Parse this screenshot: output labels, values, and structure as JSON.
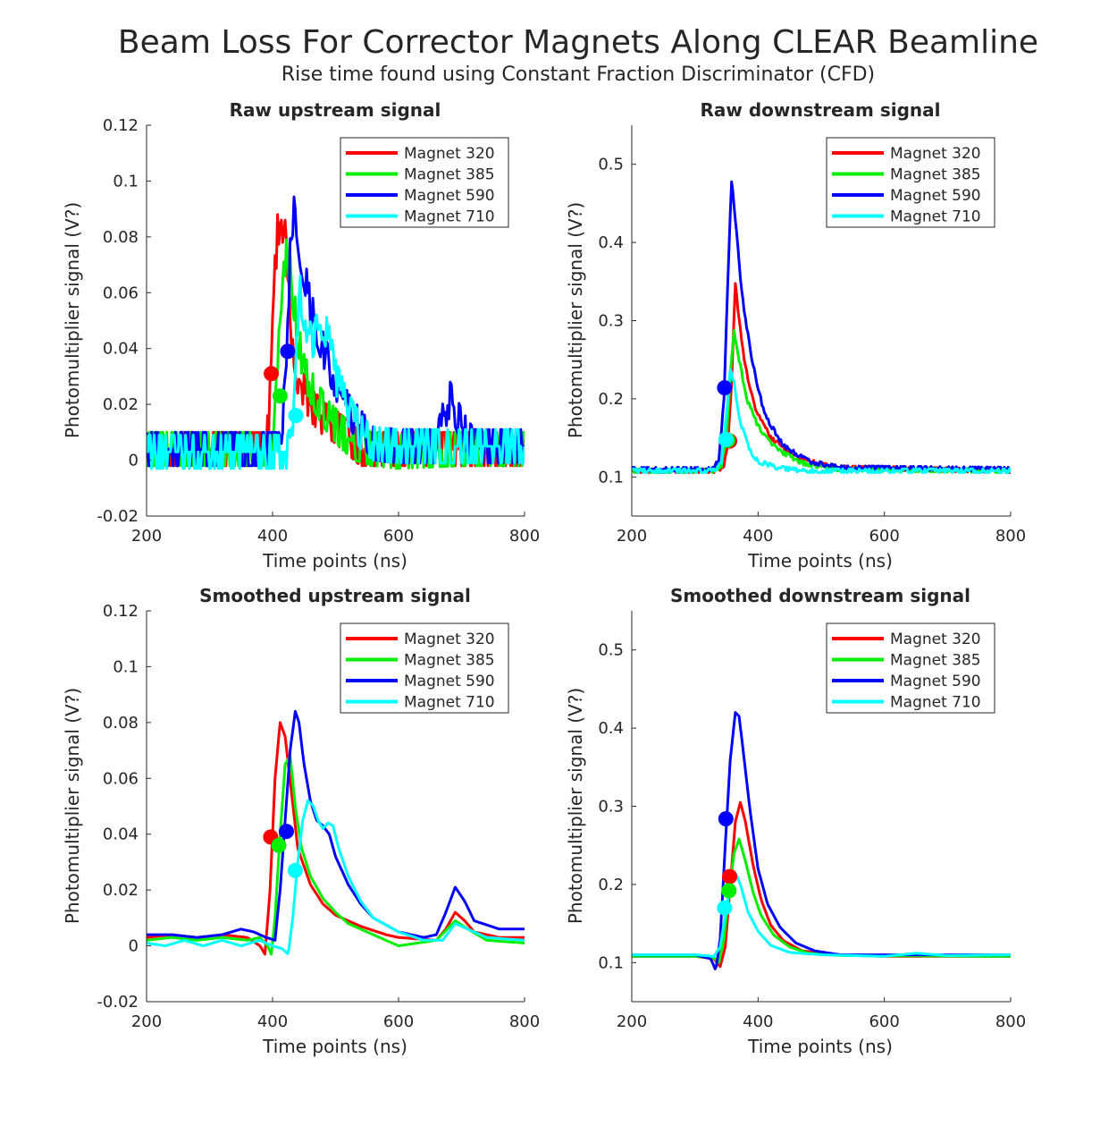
{
  "figure": {
    "title": "Beam Loss For Corrector Magnets Along CLEAR Beamline",
    "subtitle": "Rise time found using Constant Fraction Discriminator (CFD)"
  },
  "colors": {
    "Magnet 320": "#ff0000",
    "Magnet 385": "#00ee00",
    "Magnet 590": "#0000ff",
    "Magnet 710": "#00ffff"
  },
  "chart_data": [
    {
      "type": "line",
      "title": "Raw upstream signal",
      "xlabel": "Time points (ns)",
      "ylabel": "Photomultiplier signal (V?)",
      "xlim": [
        200,
        800
      ],
      "ylim": [
        -0.02,
        0.12
      ],
      "xticks": [
        "200",
        "400",
        "600",
        "800"
      ],
      "yticks": [
        "-0.02",
        "0",
        "0.02",
        "0.04",
        "0.06",
        "0.08",
        "0.1",
        "0.12"
      ],
      "grid": false,
      "legend_position": "top-right",
      "noise": 0.006,
      "series": [
        {
          "name": "Magnet 320",
          "color": "#ff0000",
          "x": [
            200,
            380,
            392,
            398,
            402,
            408,
            414,
            420,
            428,
            440,
            460,
            480,
            500,
            520,
            540,
            600,
            700,
            800
          ],
          "y": [
            0.004,
            0.004,
            0.01,
            0.03,
            0.06,
            0.082,
            0.086,
            0.08,
            0.05,
            0.03,
            0.02,
            0.015,
            0.012,
            0.008,
            0.004,
            0.004,
            0.004,
            0.004
          ]
        },
        {
          "name": "Magnet 385",
          "color": "#00ee00",
          "x": [
            200,
            398,
            404,
            410,
            416,
            424,
            432,
            440,
            450,
            470,
            490,
            510,
            530,
            560,
            600,
            700,
            800
          ],
          "y": [
            0.004,
            0.004,
            0.015,
            0.04,
            0.07,
            0.074,
            0.06,
            0.045,
            0.032,
            0.022,
            0.015,
            0.01,
            0.006,
            0.004,
            0.003,
            0.004,
            0.004
          ]
        },
        {
          "name": "Magnet 590",
          "color": "#0000ff",
          "x": [
            200,
            410,
            418,
            424,
            430,
            436,
            444,
            452,
            460,
            480,
            500,
            520,
            540,
            560,
            600,
            660,
            672,
            682,
            690,
            700,
            720,
            800
          ],
          "y": [
            0.004,
            0.004,
            0.02,
            0.05,
            0.085,
            0.09,
            0.075,
            0.065,
            0.055,
            0.04,
            0.028,
            0.018,
            0.012,
            0.006,
            0.005,
            0.005,
            0.016,
            0.022,
            0.018,
            0.012,
            0.005,
            0.005
          ]
        },
        {
          "name": "Magnet 710",
          "color": "#00ffff",
          "x": [
            200,
            425,
            432,
            438,
            444,
            452,
            462,
            470,
            480,
            490,
            500,
            520,
            540,
            560,
            600,
            800
          ],
          "y": [
            0.003,
            0.003,
            0.015,
            0.038,
            0.06,
            0.05,
            0.042,
            0.046,
            0.05,
            0.042,
            0.03,
            0.018,
            0.01,
            0.006,
            0.005,
            0.005
          ]
        }
      ],
      "markers": [
        {
          "series": "Magnet 320",
          "x": 398,
          "y": 0.031
        },
        {
          "series": "Magnet 385",
          "x": 412,
          "y": 0.023
        },
        {
          "series": "Magnet 590",
          "x": 424,
          "y": 0.039
        },
        {
          "series": "Magnet 710",
          "x": 437,
          "y": 0.016
        }
      ]
    },
    {
      "type": "line",
      "title": "Raw downstream signal",
      "xlabel": "Time points (ns)",
      "ylabel": "Photomultiplier signal (V?)",
      "xlim": [
        200,
        800
      ],
      "ylim": [
        0.05,
        0.55
      ],
      "xticks": [
        "200",
        "400",
        "600",
        "800"
      ],
      "yticks": [
        "0.1",
        "0.2",
        "0.3",
        "0.4",
        "0.5"
      ],
      "grid": false,
      "legend_position": "top-right",
      "noise": 0.004,
      "series": [
        {
          "name": "Magnet 320",
          "color": "#ff0000",
          "x": [
            200,
            330,
            345,
            352,
            358,
            364,
            370,
            380,
            395,
            420,
            460,
            520,
            800
          ],
          "y": [
            0.108,
            0.108,
            0.112,
            0.14,
            0.22,
            0.35,
            0.3,
            0.24,
            0.19,
            0.15,
            0.125,
            0.112,
            0.108
          ]
        },
        {
          "name": "Magnet 385",
          "color": "#00ee00",
          "x": [
            200,
            330,
            342,
            350,
            356,
            362,
            370,
            382,
            400,
            430,
            470,
            520,
            800
          ],
          "y": [
            0.108,
            0.108,
            0.115,
            0.15,
            0.23,
            0.285,
            0.25,
            0.2,
            0.165,
            0.135,
            0.118,
            0.11,
            0.108
          ]
        },
        {
          "name": "Magnet 590",
          "color": "#0000ff",
          "x": [
            200,
            325,
            338,
            346,
            352,
            358,
            365,
            375,
            390,
            410,
            440,
            480,
            530,
            800
          ],
          "y": [
            0.11,
            0.11,
            0.12,
            0.2,
            0.35,
            0.48,
            0.42,
            0.33,
            0.25,
            0.18,
            0.14,
            0.12,
            0.112,
            0.11
          ]
        },
        {
          "name": "Magnet 710",
          "color": "#00ffff",
          "x": [
            200,
            330,
            342,
            350,
            356,
            362,
            372,
            386,
            400,
            430,
            470,
            800
          ],
          "y": [
            0.108,
            0.108,
            0.12,
            0.18,
            0.24,
            0.22,
            0.17,
            0.135,
            0.12,
            0.112,
            0.108,
            0.108
          ]
        }
      ],
      "markers": [
        {
          "series": "Magnet 320",
          "x": 355,
          "y": 0.146
        },
        {
          "series": "Magnet 385",
          "x": 352,
          "y": 0.147
        },
        {
          "series": "Magnet 590",
          "x": 347,
          "y": 0.214
        },
        {
          "series": "Magnet 710",
          "x": 349,
          "y": 0.148
        }
      ]
    },
    {
      "type": "line",
      "title": "Smoothed upstream signal",
      "xlabel": "Time points (ns)",
      "ylabel": "Photomultiplier signal (V?)",
      "xlim": [
        200,
        800
      ],
      "ylim": [
        -0.02,
        0.12
      ],
      "xticks": [
        "200",
        "400",
        "600",
        "800"
      ],
      "yticks": [
        "-0.02",
        "0",
        "0.02",
        "0.04",
        "0.06",
        "0.08",
        "0.1",
        "0.12"
      ],
      "grid": false,
      "legend_position": "top-right",
      "noise": 0,
      "series": [
        {
          "name": "Magnet 320",
          "color": "#ff0000",
          "x": [
            200,
            240,
            280,
            320,
            360,
            380,
            388,
            396,
            404,
            412,
            420,
            430,
            440,
            460,
            480,
            500,
            540,
            580,
            600,
            660,
            675,
            690,
            705,
            720,
            760,
            800
          ],
          "y": [
            0.003,
            0.004,
            0.003,
            0.004,
            0.003,
            0.0,
            -0.003,
            0.02,
            0.06,
            0.08,
            0.075,
            0.055,
            0.035,
            0.022,
            0.015,
            0.011,
            0.007,
            0.004,
            0.003,
            0.002,
            0.006,
            0.012,
            0.009,
            0.005,
            0.003,
            0.003
          ]
        },
        {
          "name": "Magnet 385",
          "color": "#00ee00",
          "x": [
            200,
            240,
            280,
            320,
            360,
            380,
            392,
            398,
            404,
            412,
            420,
            428,
            436,
            446,
            460,
            480,
            500,
            520,
            560,
            600,
            660,
            690,
            710,
            740,
            800
          ],
          "y": [
            0.002,
            0.003,
            0.002,
            0.003,
            0.002,
            0.003,
            0.0,
            -0.003,
            0.01,
            0.04,
            0.065,
            0.068,
            0.05,
            0.035,
            0.025,
            0.017,
            0.012,
            0.008,
            0.004,
            0.0,
            0.002,
            0.009,
            0.006,
            0.002,
            0.001
          ]
        },
        {
          "name": "Magnet 590",
          "color": "#0000ff",
          "x": [
            200,
            240,
            280,
            320,
            350,
            370,
            390,
            404,
            412,
            420,
            428,
            436,
            442,
            450,
            460,
            470,
            480,
            490,
            500,
            520,
            540,
            560,
            600,
            640,
            660,
            675,
            690,
            705,
            720,
            760,
            800
          ],
          "y": [
            0.004,
            0.004,
            0.003,
            0.004,
            0.006,
            0.005,
            0.003,
            0.002,
            0.02,
            0.045,
            0.07,
            0.084,
            0.08,
            0.065,
            0.052,
            0.045,
            0.043,
            0.04,
            0.032,
            0.022,
            0.015,
            0.01,
            0.005,
            0.003,
            0.004,
            0.012,
            0.021,
            0.016,
            0.009,
            0.006,
            0.006
          ]
        },
        {
          "name": "Magnet 710",
          "color": "#00ffff",
          "x": [
            200,
            230,
            260,
            290,
            320,
            350,
            380,
            400,
            415,
            425,
            432,
            440,
            448,
            456,
            465,
            472,
            480,
            488,
            496,
            505,
            520,
            540,
            560,
            600,
            640,
            670,
            690,
            710,
            740,
            800
          ],
          "y": [
            0.001,
            0.0,
            0.002,
            0.0,
            0.002,
            0.0,
            0.002,
            0.0,
            -0.001,
            -0.003,
            0.01,
            0.03,
            0.045,
            0.052,
            0.05,
            0.045,
            0.042,
            0.044,
            0.043,
            0.035,
            0.025,
            0.016,
            0.01,
            0.005,
            0.002,
            0.002,
            0.008,
            0.006,
            0.003,
            0.002
          ]
        }
      ],
      "markers": [
        {
          "series": "Magnet 320",
          "x": 397,
          "y": 0.039
        },
        {
          "series": "Magnet 385",
          "x": 410,
          "y": 0.036
        },
        {
          "series": "Magnet 590",
          "x": 422,
          "y": 0.041
        },
        {
          "series": "Magnet 710",
          "x": 436,
          "y": 0.027
        }
      ]
    },
    {
      "type": "line",
      "title": "Smoothed downstream signal",
      "xlabel": "Time points (ns)",
      "ylabel": "Photomultiplier signal (V?)",
      "xlim": [
        200,
        800
      ],
      "ylim": [
        0.05,
        0.55
      ],
      "xticks": [
        "200",
        "400",
        "600",
        "800"
      ],
      "yticks": [
        "0.1",
        "0.2",
        "0.3",
        "0.4",
        "0.5"
      ],
      "grid": false,
      "legend_position": "top-right",
      "noise": 0,
      "series": [
        {
          "name": "Magnet 320",
          "color": "#ff0000",
          "x": [
            200,
            300,
            330,
            340,
            348,
            356,
            364,
            372,
            380,
            392,
            405,
            420,
            440,
            470,
            520,
            600,
            800
          ],
          "y": [
            0.108,
            0.108,
            0.105,
            0.095,
            0.12,
            0.2,
            0.28,
            0.305,
            0.28,
            0.225,
            0.18,
            0.148,
            0.128,
            0.115,
            0.11,
            0.108,
            0.108
          ]
        },
        {
          "name": "Magnet 385",
          "color": "#00ee00",
          "x": [
            200,
            300,
            330,
            338,
            346,
            354,
            362,
            370,
            380,
            392,
            405,
            425,
            450,
            480,
            530,
            800
          ],
          "y": [
            0.108,
            0.108,
            0.106,
            0.1,
            0.13,
            0.19,
            0.24,
            0.258,
            0.23,
            0.19,
            0.16,
            0.135,
            0.12,
            0.112,
            0.109,
            0.108
          ]
        },
        {
          "name": "Magnet 590",
          "color": "#0000ff",
          "x": [
            200,
            300,
            325,
            333,
            340,
            348,
            356,
            364,
            370,
            378,
            388,
            400,
            415,
            435,
            460,
            490,
            530,
            800
          ],
          "y": [
            0.11,
            0.11,
            0.105,
            0.09,
            0.13,
            0.25,
            0.36,
            0.42,
            0.415,
            0.36,
            0.29,
            0.22,
            0.175,
            0.145,
            0.125,
            0.115,
            0.11,
            0.11
          ]
        },
        {
          "name": "Magnet 710",
          "color": "#00ffff",
          "x": [
            200,
            300,
            330,
            340,
            348,
            356,
            364,
            372,
            384,
            400,
            420,
            450,
            500,
            600,
            650,
            700,
            800
          ],
          "y": [
            0.11,
            0.11,
            0.108,
            0.12,
            0.16,
            0.2,
            0.215,
            0.2,
            0.165,
            0.14,
            0.122,
            0.113,
            0.11,
            0.108,
            0.112,
            0.109,
            0.11
          ]
        }
      ],
      "markers": [
        {
          "series": "Magnet 320",
          "x": 355,
          "y": 0.21
        },
        {
          "series": "Magnet 385",
          "x": 354,
          "y": 0.192
        },
        {
          "series": "Magnet 590",
          "x": 349,
          "y": 0.284
        },
        {
          "series": "Magnet 710",
          "x": 347,
          "y": 0.17
        }
      ]
    }
  ]
}
